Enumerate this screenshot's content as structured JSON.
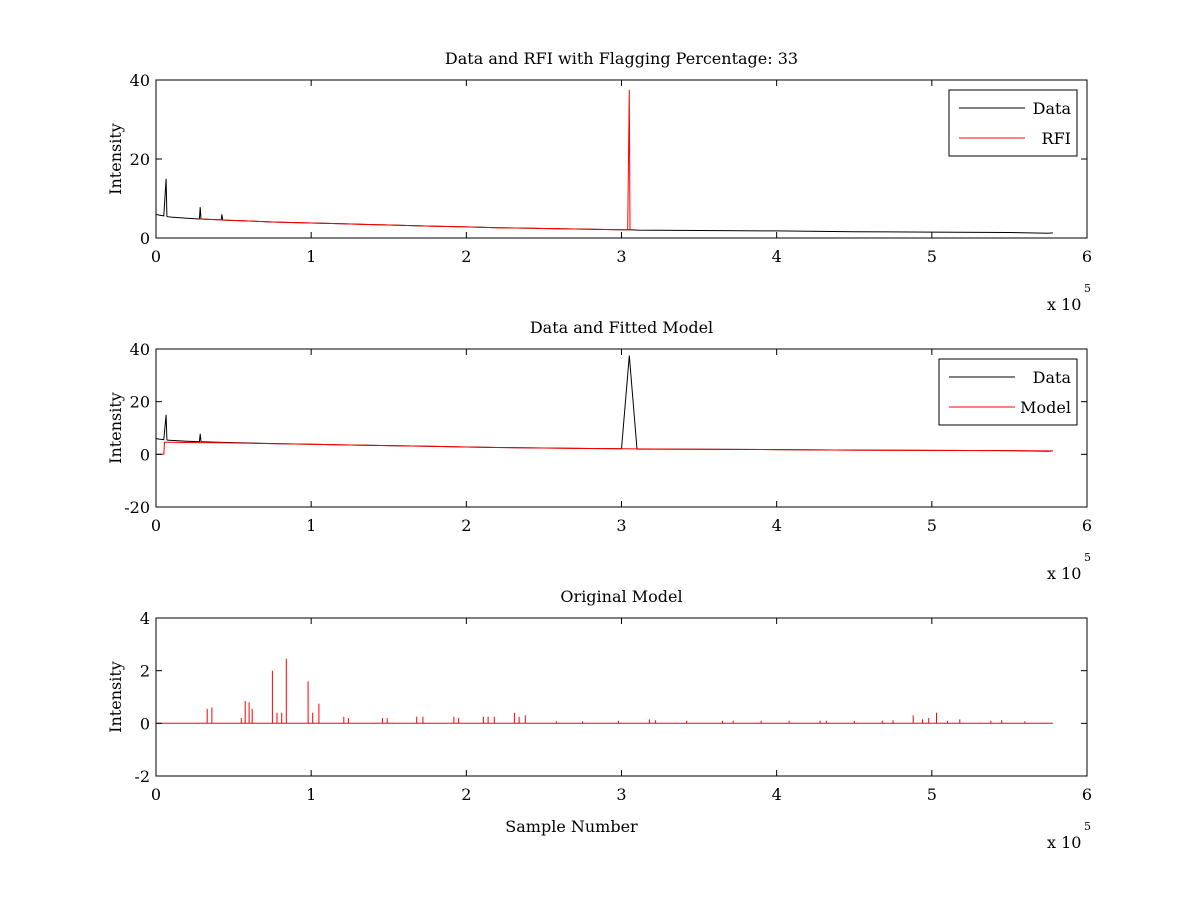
{
  "chart_data": [
    {
      "type": "line",
      "title": "Data and RFI with Flagging Percentage: 33",
      "xlabel": "",
      "ylabel": "Intensity",
      "xlim": [
        0,
        600000
      ],
      "ylim": [
        0,
        40
      ],
      "x_ticks": [
        0,
        1,
        2,
        3,
        4,
        5,
        6
      ],
      "x_tick_labels": [
        "0",
        "1",
        "2",
        "3",
        "4",
        "5",
        "6"
      ],
      "y_ticks": [
        0,
        20,
        40
      ],
      "y_tick_labels": [
        "0",
        "20",
        "40"
      ],
      "x_exponent_label": "x 10",
      "x_exponent": "5",
      "legend": "top-right",
      "grid": false,
      "series": [
        {
          "name": "Data",
          "color": "#000000",
          "x": [
            0,
            2000,
            5000,
            6500,
            7000,
            7500,
            10000,
            20000,
            28000,
            28500,
            29000,
            40000,
            42000,
            42500,
            43000,
            60000,
            80000,
            100000,
            120000,
            150000,
            180000,
            200000,
            220000,
            250000,
            280000,
            300000,
            305000,
            310000,
            350000,
            400000,
            450000,
            500000,
            550000,
            575000,
            578000
          ],
          "y": [
            6.0,
            5.8,
            5.6,
            15.0,
            5.5,
            5.4,
            5.3,
            5.0,
            4.8,
            7.8,
            4.8,
            4.6,
            4.6,
            6.0,
            4.5,
            4.3,
            4.0,
            3.8,
            3.6,
            3.3,
            3.0,
            2.8,
            2.6,
            2.4,
            2.2,
            2.1,
            2.1,
            2.0,
            1.9,
            1.8,
            1.6,
            1.5,
            1.4,
            1.2,
            1.3
          ]
        },
        {
          "name": "RFI",
          "color": "#ff0000",
          "x": [
            28000,
            60000,
            80000,
            100000,
            120000,
            150000,
            180000,
            200000,
            220000,
            240000,
            250000,
            300000,
            304000,
            305000,
            305500,
            306000
          ],
          "y": [
            4.8,
            4.3,
            4.0,
            3.8,
            3.6,
            3.3,
            3.0,
            2.8,
            2.6,
            2.5,
            2.4,
            2.1,
            2.1,
            37.5,
            2.1,
            2.1
          ]
        }
      ]
    },
    {
      "type": "line",
      "title": "Data and Fitted Model",
      "xlabel": "",
      "ylabel": "Intensity",
      "xlim": [
        0,
        600000
      ],
      "ylim": [
        -20,
        40
      ],
      "x_ticks": [
        0,
        1,
        2,
        3,
        4,
        5,
        6
      ],
      "x_tick_labels": [
        "0",
        "1",
        "2",
        "3",
        "4",
        "5",
        "6"
      ],
      "y_ticks": [
        -20,
        0,
        20,
        40
      ],
      "y_tick_labels": [
        "-20",
        "0",
        "20",
        "40"
      ],
      "x_exponent_label": "x 10",
      "x_exponent": "5",
      "legend": "top-right",
      "grid": false,
      "series": [
        {
          "name": "Data",
          "color": "#000000",
          "x": [
            0,
            2000,
            5000,
            6500,
            7000,
            7500,
            10000,
            20000,
            28000,
            28500,
            29000,
            40000,
            60000,
            80000,
            100000,
            120000,
            150000,
            180000,
            200000,
            220000,
            250000,
            280000,
            300000,
            305000,
            310000,
            350000,
            400000,
            450000,
            500000,
            550000,
            575000,
            578000
          ],
          "y": [
            6.0,
            5.8,
            5.6,
            15.0,
            5.5,
            5.4,
            5.3,
            5.0,
            4.8,
            7.8,
            4.8,
            4.6,
            4.3,
            4.0,
            3.8,
            3.6,
            3.3,
            3.0,
            2.8,
            2.6,
            2.4,
            2.2,
            2.1,
            37.5,
            2.0,
            1.9,
            1.8,
            1.6,
            1.5,
            1.4,
            1.2,
            1.3
          ]
        },
        {
          "name": "Model",
          "color": "#ff0000",
          "x": [
            0,
            5000,
            5500,
            10000,
            20000,
            40000,
            60000,
            80000,
            100000,
            120000,
            150000,
            180000,
            200000,
            220000,
            250000,
            280000,
            300000,
            350000,
            400000,
            450000,
            500000,
            550000,
            578000
          ],
          "y": [
            0,
            0,
            4.6,
            4.6,
            4.5,
            4.4,
            4.2,
            4.0,
            3.8,
            3.6,
            3.3,
            3.0,
            2.8,
            2.6,
            2.4,
            2.2,
            2.1,
            1.9,
            1.8,
            1.6,
            1.5,
            1.4,
            1.3
          ]
        }
      ]
    },
    {
      "type": "line",
      "title": "Original Model",
      "xlabel": "Sample Number",
      "ylabel": "Intensity",
      "xlim": [
        0,
        600000
      ],
      "ylim": [
        -2,
        4
      ],
      "x_ticks": [
        0,
        1,
        2,
        3,
        4,
        5,
        6
      ],
      "x_tick_labels": [
        "0",
        "1",
        "2",
        "3",
        "4",
        "5",
        "6"
      ],
      "y_ticks": [
        -2,
        0,
        2,
        4
      ],
      "y_tick_labels": [
        "-2",
        "0",
        "2",
        "4"
      ],
      "x_exponent_label": "x 10",
      "x_exponent": "5",
      "legend": "none",
      "grid": false,
      "series": [
        {
          "color": "#ff0000",
          "baseline": 0,
          "x_end": 578000,
          "spikes_x": [
            33000,
            36000,
            55000,
            57500,
            60000,
            62000,
            75000,
            78000,
            81000,
            84000,
            98000,
            101000,
            105000,
            121000,
            124000,
            146000,
            149000,
            168000,
            172000,
            192000,
            195000,
            211000,
            214000,
            218000,
            231000,
            234000,
            238000,
            258000,
            275000,
            298000,
            318000,
            322000,
            342000,
            365000,
            372000,
            390000,
            408000,
            428000,
            432000,
            450000,
            468000,
            475000,
            488000,
            494000,
            498000,
            503000,
            510000,
            518000,
            538000,
            545000,
            560000
          ],
          "spikes_y": [
            0.55,
            0.6,
            0.2,
            0.85,
            0.8,
            0.55,
            2.0,
            0.4,
            0.4,
            2.45,
            1.6,
            0.4,
            0.75,
            0.25,
            0.2,
            0.2,
            0.2,
            0.25,
            0.25,
            0.25,
            0.2,
            0.25,
            0.25,
            0.25,
            0.4,
            0.25,
            0.3,
            0.08,
            0.08,
            0.1,
            0.15,
            0.12,
            0.1,
            0.1,
            0.1,
            0.1,
            0.1,
            0.1,
            0.1,
            0.1,
            0.1,
            0.12,
            0.3,
            0.15,
            0.2,
            0.4,
            0.1,
            0.15,
            0.1,
            0.12,
            0.08
          ]
        }
      ]
    }
  ]
}
